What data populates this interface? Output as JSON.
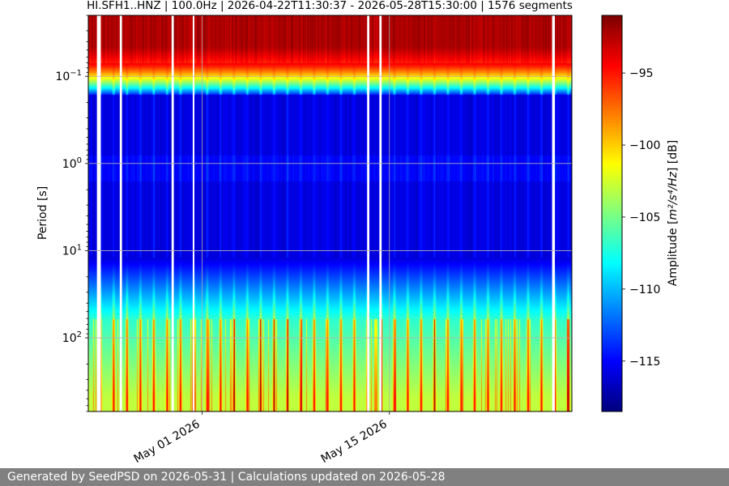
{
  "chart_data": {
    "type": "heatmap",
    "title": "HI.SFH1..HNZ | 100.0Hz | 2026-04-22T11:30:37 - 2026-05-28T15:30:00 | 1576 segments",
    "ylabel": "Period [s]",
    "y_scale": "log",
    "y_inverted": true,
    "ylim": [
      0.02,
      700
    ],
    "y_ticks": [
      {
        "base": "10",
        "exp": "−1",
        "value": 0.1
      },
      {
        "base": "10",
        "exp": "0",
        "value": 1
      },
      {
        "base": "10",
        "exp": "1",
        "value": 10
      },
      {
        "base": "10",
        "exp": "2",
        "value": 100
      }
    ],
    "xlim": [
      "2026-04-22T11:30:37",
      "2026-05-28T15:30:00"
    ],
    "x_ticks": [
      {
        "label": "May 01 2026",
        "value": "2026-05-01"
      },
      {
        "label": "May 15 2026",
        "value": "2026-05-15"
      }
    ],
    "grid": true,
    "colormap": "jet",
    "colorbar": {
      "label_prefix": "Amplitude [",
      "label_math": "m²/s⁴/Hz",
      "label_suffix": "] [dB]",
      "range": [
        -118.5,
        -91
      ],
      "ticks": [
        {
          "label": "−95",
          "value": -95
        },
        {
          "label": "−100",
          "value": -100
        },
        {
          "label": "−105",
          "value": -105
        },
        {
          "label": "−110",
          "value": -110
        },
        {
          "label": "−115",
          "value": -115
        }
      ]
    },
    "gaps": [
      [
        "2026-04-23T03:00:00",
        "2026-04-23T10:00:00"
      ],
      [
        "2026-04-24T20:00:00",
        "2026-04-25T00:00:00"
      ],
      [
        "2026-04-28T17:00:00",
        "2026-04-28T21:00:00"
      ],
      [
        "2026-04-30T07:00:00",
        "2026-04-30T09:00:00"
      ],
      [
        "2026-05-13T08:00:00",
        "2026-05-13T12:00:00"
      ],
      [
        "2026-05-14T06:00:00",
        "2026-05-14T10:00:00"
      ],
      [
        "2026-05-27T04:00:00",
        "2026-05-27T09:00:00"
      ]
    ]
  },
  "footer": {
    "text": "Generated by SeedPSD on 2026-05-31 | Calculations updated on 2026-05-28"
  }
}
